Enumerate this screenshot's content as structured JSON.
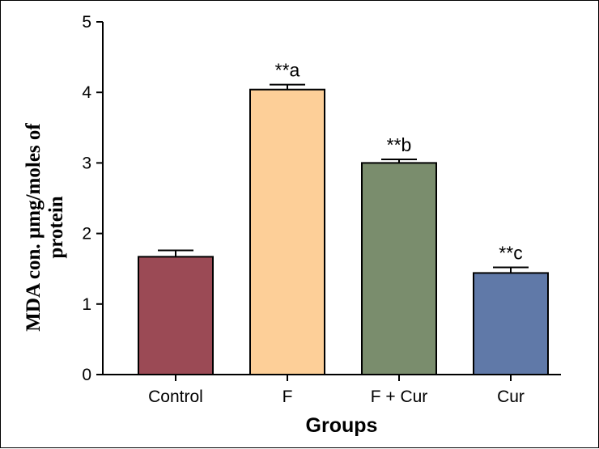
{
  "chart_data": {
    "type": "bar",
    "categories": [
      "Control",
      "F",
      "F + Cur",
      "Cur"
    ],
    "values": [
      1.67,
      4.04,
      3.0,
      1.44
    ],
    "errors": [
      0.09,
      0.07,
      0.05,
      0.08
    ],
    "annotations": [
      "",
      "**a",
      "**b",
      "**c"
    ],
    "colors": [
      "#9b4a55",
      "#fdcf98",
      "#7a8d6d",
      "#6079a8"
    ],
    "xlabel": "Groups",
    "ylabel_line1": "MDA con. µmg/moles of",
    "ylabel_line2": "protein",
    "ylim": [
      0,
      5
    ],
    "yticks": [
      0,
      1,
      2,
      3,
      4,
      5
    ],
    "grid": false
  }
}
